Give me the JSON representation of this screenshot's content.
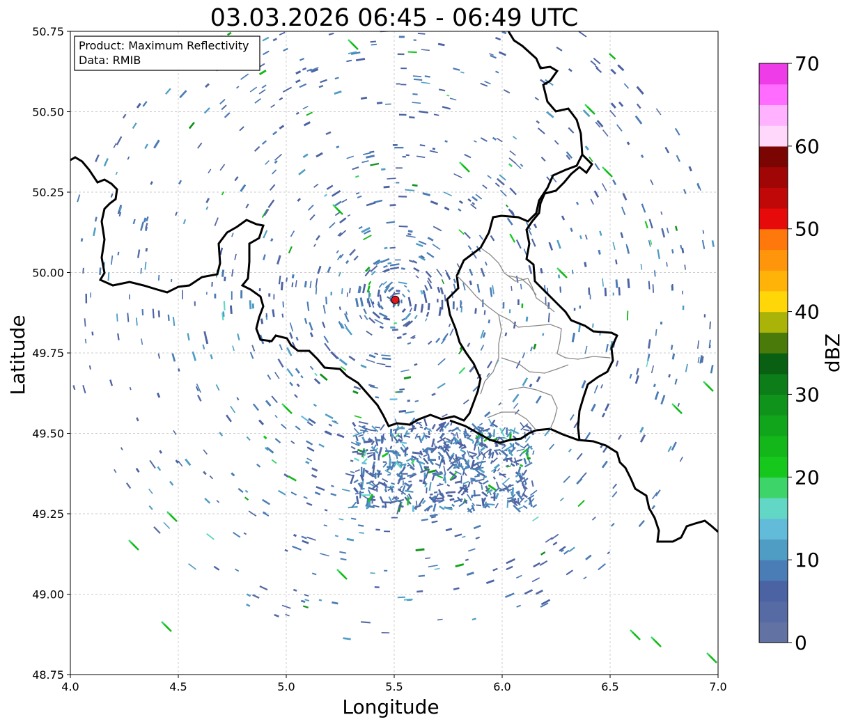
{
  "title": "03.03.2026 06:45 - 06:49 UTC",
  "info": {
    "product_line": "Product: Maximum Reflectivity",
    "data_line": "Data: RMIB"
  },
  "axes": {
    "xlabel": "Longitude",
    "ylabel": "Latitude",
    "x_range": [
      4.0,
      7.0
    ],
    "y_range": [
      48.75,
      50.75
    ],
    "x_ticks": [
      "4.0",
      "4.5",
      "5.0",
      "5.5",
      "6.0",
      "6.5",
      "7.0"
    ],
    "y_ticks": [
      "48.75",
      "49.00",
      "49.25",
      "49.50",
      "49.75",
      "50.00",
      "50.25",
      "50.50",
      "50.75"
    ]
  },
  "radar_site": {
    "lon": 5.505,
    "lat": 49.915,
    "color": "#e8141c"
  },
  "colorbar": {
    "label": "dBZ",
    "min": 0,
    "max": 70,
    "ticks": [
      "0",
      "10",
      "20",
      "30",
      "40",
      "50",
      "60",
      "70"
    ],
    "colors": [
      "#6172a3",
      "#566aa3",
      "#4b62a3",
      "#4a7cb5",
      "#4f9dc4",
      "#62bcd9",
      "#62d7c6",
      "#3dd46a",
      "#16c81c",
      "#13b71a",
      "#11a51b",
      "#0f931b",
      "#0c7d19",
      "#095f12",
      "#497a0a",
      "#aab408",
      "#ffd708",
      "#ffb208",
      "#ff950a",
      "#ff780c",
      "#e60a0a",
      "#c00808",
      "#a00605",
      "#7a0503",
      "#ffd8fc",
      "#ffb2ff",
      "#ff6cff",
      "#ee3de8"
    ]
  },
  "map": {
    "border_color": "#000000",
    "region_color": "#888888",
    "grid_color": "#bbbbbb"
  }
}
